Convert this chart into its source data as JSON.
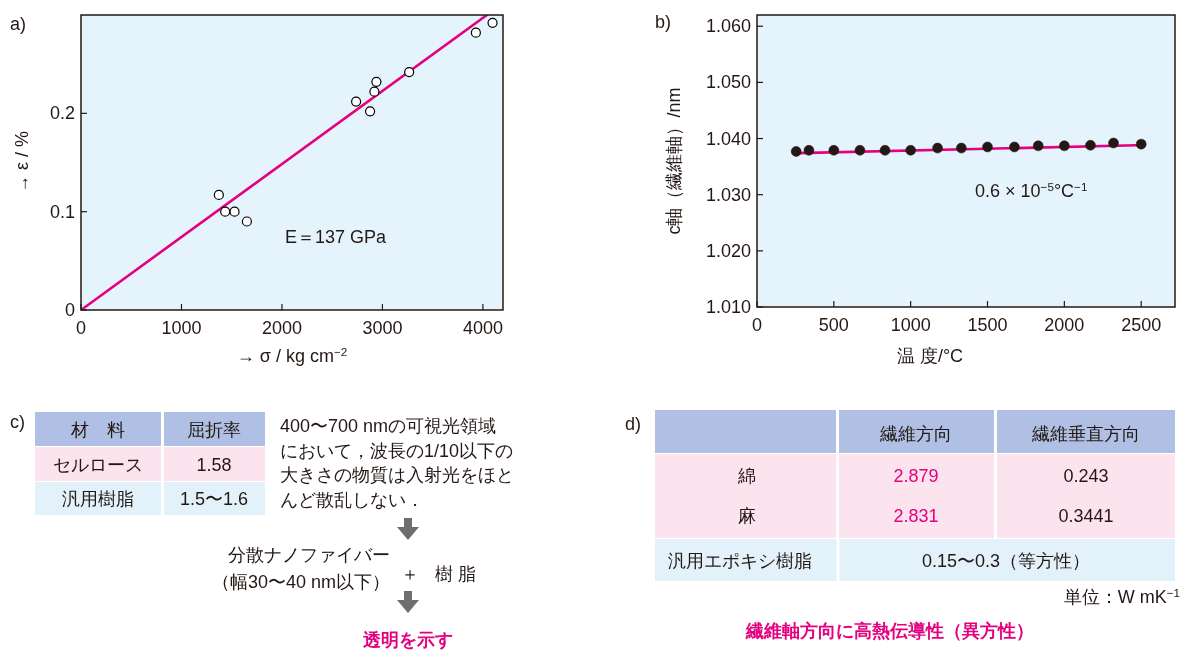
{
  "chart_data": [
    {
      "type": "scatter",
      "title": "a)",
      "xlabel": "→ σ / kg cm$^{−2}$",
      "ylabel": "→ ε / %",
      "xlim": [
        0,
        4200
      ],
      "ylim": [
        0,
        0.3
      ],
      "xticks": [
        0,
        1000,
        2000,
        3000,
        4000
      ],
      "yticks": [
        0,
        0.1,
        0.2
      ],
      "annotations": [
        "E＝137 GPa"
      ],
      "series": [
        {
          "type": "scatter",
          "marker": "circle",
          "color": "#000000",
          "x": [
            1372,
            1435,
            1528,
            1651,
            2738,
            2877,
            2920,
            2940,
            3266,
            3930,
            4096
          ],
          "values": [
            0.117,
            0.1,
            0.1,
            0.09,
            0.212,
            0.202,
            0.222,
            0.232,
            0.242,
            0.282,
            0.292
          ]
        },
        {
          "type": "line",
          "color": "#e4007f",
          "x": [
            0,
            4040
          ],
          "values": [
            0,
            0.3
          ]
        }
      ]
    },
    {
      "type": "scatter",
      "title": "b)",
      "xlabel": "温 度/°C",
      "ylabel": "c軸（繊維軸）/nm",
      "xlim": [
        0,
        2720
      ],
      "ylim": [
        1.01,
        1.062
      ],
      "xticks": [
        0,
        500,
        1000,
        1500,
        2000,
        2500
      ],
      "yticks": [
        {
          "value": 1.01,
          "label": "1.010"
        },
        {
          "value": 1.02,
          "label": "1.020"
        },
        {
          "value": 1.03,
          "label": "1.030"
        },
        {
          "value": 1.04,
          "label": "1.040"
        },
        {
          "value": 1.05,
          "label": "1.050"
        },
        {
          "value": 1.06,
          "label": "1.060"
        }
      ],
      "annotations": [
        "0.6 × 10$^{−5}$°C$^{−1}$"
      ],
      "series": [
        {
          "type": "line",
          "color": "#e4007f",
          "x": [
            270,
            2470
          ],
          "values": [
            1.0374,
            1.0388
          ]
        },
        {
          "type": "scatter",
          "marker": "circle",
          "color": "#231815",
          "x": [
            255,
            338,
            500,
            670,
            833,
            1000,
            1175,
            1330,
            1500,
            1675,
            1830,
            2000,
            2170,
            2320,
            2500
          ],
          "values": [
            1.0377,
            1.0379,
            1.0379,
            1.0379,
            1.0379,
            1.0379,
            1.0383,
            1.0383,
            1.0385,
            1.0385,
            1.0387,
            1.0387,
            1.0388,
            1.0392,
            1.039
          ]
        }
      ]
    },
    {
      "type": "other",
      "title": "c)",
      "annotations": [
        "材　料",
        "屈折率",
        "セルロース",
        "1.58",
        "汎用樹脂",
        "1.5〜1.6",
        "400〜700 nmの可視光領域",
        "において，波長の1/10以下の",
        "大きさの物質は入射光をほと",
        "んど散乱しない．",
        "分散ナノファイバー",
        "（幅30〜40 nm以下）",
        "＋",
        "樹 脂",
        "透明を示す"
      ]
    },
    {
      "type": "other",
      "title": "d)",
      "annotations": [
        "繊維方向",
        "繊維垂直方向",
        "綿",
        "2.879",
        "0.243",
        "麻",
        "2.831",
        "0.3441",
        "汎用エポキシ樹脂",
        "0.15〜0.3（等方性）",
        "単位：W mK$^{−1}$",
        "繊維軸方向に高熱伝導性（異方性）"
      ]
    }
  ]
}
